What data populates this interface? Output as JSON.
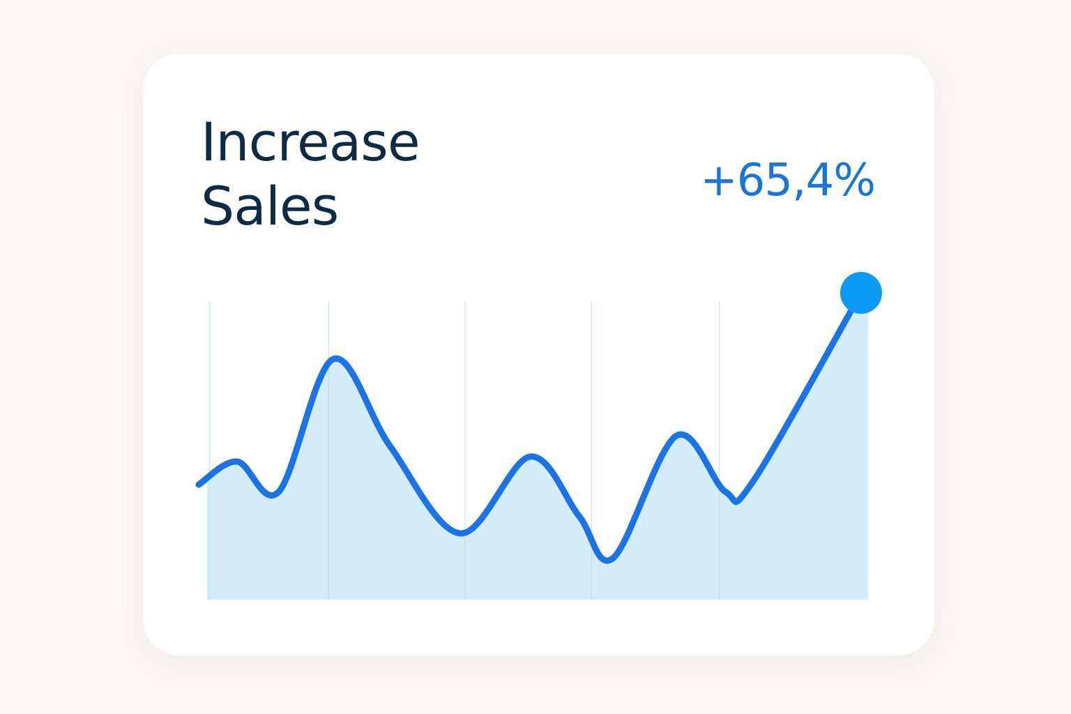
{
  "chart_data": {
    "type": "area",
    "title": "Increase Sales",
    "annotation": "+65,4%",
    "x": [
      0,
      5.8,
      12.1,
      20.3,
      28.9,
      39.5,
      50,
      57.4,
      62.6,
      72.1,
      79.5,
      83.7,
      100
    ],
    "values": [
      37.5,
      45,
      35.2,
      78.4,
      50,
      21.6,
      46.6,
      27.3,
      13.6,
      53.4,
      35.2,
      38.6,
      100
    ],
    "xlim": [
      0,
      100
    ],
    "ylim": [
      0,
      100
    ],
    "xticks": [
      1.6,
      19.6,
      40.2,
      59.3,
      78.6
    ],
    "grid": true,
    "color": "#1a73e8",
    "fill_color": "#d2ecfb",
    "marker_color": "#0a9cf5"
  }
}
